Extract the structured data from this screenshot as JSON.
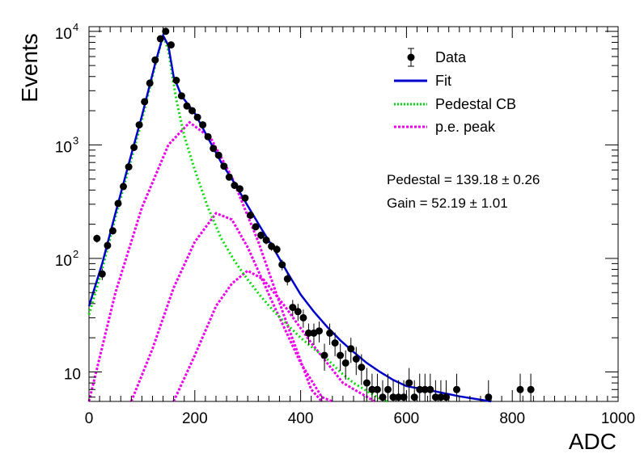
{
  "chart_data": {
    "type": "scatter",
    "xlabel": "ADC",
    "ylabel": "Events",
    "xlim": [
      0,
      1000
    ],
    "ylim": [
      5.5,
      11000
    ],
    "yscale": "log",
    "grid": false,
    "legend_position": "top-right",
    "x_ticks": [
      "0",
      "200",
      "400",
      "600",
      "800",
      "1000"
    ],
    "y_ticks": [
      {
        "value": 10,
        "base": "10",
        "exp": ""
      },
      {
        "value": 100,
        "base": "10",
        "exp": "2"
      },
      {
        "value": 1000,
        "base": "10",
        "exp": "3"
      },
      {
        "value": 10000,
        "base": "10",
        "exp": "4"
      }
    ],
    "annotations": [
      "Pedestal = 139.18 ± 0.26",
      "Gain = 52.19 ± 1.01"
    ],
    "series": [
      {
        "name": "Data",
        "kind": "points-with-errors",
        "color": "#000000",
        "points": [
          [
            15,
            150
          ],
          [
            25,
            73
          ],
          [
            35,
            130
          ],
          [
            45,
            175
          ],
          [
            55,
            305
          ],
          [
            65,
            430
          ],
          [
            75,
            640
          ],
          [
            85,
            950
          ],
          [
            95,
            1500
          ],
          [
            105,
            2400
          ],
          [
            115,
            3500
          ],
          [
            125,
            5600
          ],
          [
            135,
            8600
          ],
          [
            145,
            10000
          ],
          [
            155,
            7600
          ],
          [
            165,
            3700
          ],
          [
            175,
            2700
          ],
          [
            185,
            2200
          ],
          [
            195,
            2000
          ],
          [
            205,
            1750
          ],
          [
            215,
            1500
          ],
          [
            225,
            1180
          ],
          [
            235,
            930
          ],
          [
            245,
            810
          ],
          [
            255,
            650
          ],
          [
            265,
            520
          ],
          [
            275,
            440
          ],
          [
            285,
            410
          ],
          [
            295,
            340
          ],
          [
            305,
            240
          ],
          [
            315,
            190
          ],
          [
            325,
            160
          ],
          [
            335,
            145
          ],
          [
            345,
            128
          ],
          [
            355,
            120
          ],
          [
            365,
            88
          ],
          [
            375,
            66
          ],
          [
            385,
            37
          ],
          [
            395,
            34
          ],
          [
            405,
            30
          ],
          [
            415,
            22
          ],
          [
            425,
            22
          ],
          [
            435,
            23
          ],
          [
            445,
            14
          ],
          [
            455,
            22
          ],
          [
            465,
            18
          ],
          [
            475,
            14
          ],
          [
            485,
            12
          ],
          [
            495,
            16
          ],
          [
            505,
            13
          ],
          [
            515,
            11
          ],
          [
            525,
            8
          ],
          [
            535,
            7
          ],
          [
            545,
            7
          ],
          [
            555,
            6
          ],
          [
            565,
            7
          ],
          [
            575,
            6
          ],
          [
            585,
            6
          ],
          [
            595,
            6
          ],
          [
            605,
            8
          ],
          [
            615,
            6
          ],
          [
            625,
            7
          ],
          [
            635,
            7
          ],
          [
            645,
            7
          ],
          [
            655,
            6
          ],
          [
            665,
            6
          ],
          [
            675,
            6
          ],
          [
            695,
            7
          ],
          [
            755,
            6
          ],
          [
            815,
            7
          ],
          [
            835,
            7
          ]
        ]
      },
      {
        "name": "Fit",
        "kind": "line",
        "color": "#0000cc",
        "points": [
          [
            0,
            38
          ],
          [
            25,
            90
          ],
          [
            50,
            250
          ],
          [
            75,
            680
          ],
          [
            100,
            1800
          ],
          [
            125,
            5200
          ],
          [
            140,
            9200
          ],
          [
            150,
            7500
          ],
          [
            160,
            4000
          ],
          [
            175,
            2700
          ],
          [
            200,
            1900
          ],
          [
            225,
            1150
          ],
          [
            250,
            700
          ],
          [
            275,
            460
          ],
          [
            300,
            290
          ],
          [
            325,
            185
          ],
          [
            350,
            120
          ],
          [
            375,
            75
          ],
          [
            400,
            48
          ],
          [
            425,
            34
          ],
          [
            450,
            25
          ],
          [
            475,
            19
          ],
          [
            500,
            15
          ],
          [
            525,
            12
          ],
          [
            550,
            10
          ],
          [
            575,
            8.5
          ],
          [
            600,
            7.5
          ],
          [
            650,
            6.8
          ],
          [
            700,
            6.1
          ],
          [
            760,
            5.5
          ]
        ]
      },
      {
        "name": "Pedestal CB",
        "kind": "dotted-line",
        "color": "#00dd00",
        "points": [
          [
            0,
            32
          ],
          [
            25,
            80
          ],
          [
            50,
            230
          ],
          [
            75,
            620
          ],
          [
            100,
            1650
          ],
          [
            125,
            5000
          ],
          [
            140,
            9200
          ],
          [
            150,
            6800
          ],
          [
            165,
            2500
          ],
          [
            180,
            1200
          ],
          [
            200,
            600
          ],
          [
            225,
            280
          ],
          [
            250,
            150
          ],
          [
            275,
            95
          ],
          [
            300,
            65
          ],
          [
            325,
            46
          ],
          [
            350,
            34
          ],
          [
            375,
            26
          ],
          [
            400,
            20
          ],
          [
            425,
            16
          ],
          [
            450,
            13
          ],
          [
            475,
            10
          ],
          [
            500,
            8
          ],
          [
            525,
            6.8
          ],
          [
            550,
            5.8
          ],
          [
            565,
            5.5
          ]
        ]
      },
      {
        "name": "p.e. peak",
        "kind": "dotted-line",
        "color": "#ee00ee",
        "peaks": [
          [
            [
              0,
              5.5
            ],
            [
              50,
              50
            ],
            [
              100,
              280
            ],
            [
              150,
              1000
            ],
            [
              190,
              1580
            ],
            [
              230,
              1150
            ],
            [
              270,
              520
            ],
            [
              320,
              140
            ],
            [
              370,
              30
            ],
            [
              420,
              7
            ],
            [
              440,
              5.5
            ]
          ],
          [
            [
              80,
              5.5
            ],
            [
              120,
              16
            ],
            [
              160,
              55
            ],
            [
              200,
              140
            ],
            [
              240,
              250
            ],
            [
              270,
              220
            ],
            [
              300,
              125
            ],
            [
              350,
              38
            ],
            [
              400,
              12
            ],
            [
              440,
              6
            ],
            [
              460,
              5.5
            ]
          ],
          [
            [
              160,
              5.5
            ],
            [
              200,
              14
            ],
            [
              240,
              38
            ],
            [
              270,
              60
            ],
            [
              300,
              78
            ],
            [
              330,
              65
            ],
            [
              370,
              38
            ],
            [
              420,
              18
            ],
            [
              480,
              8
            ],
            [
              540,
              5.5
            ]
          ]
        ]
      }
    ]
  }
}
